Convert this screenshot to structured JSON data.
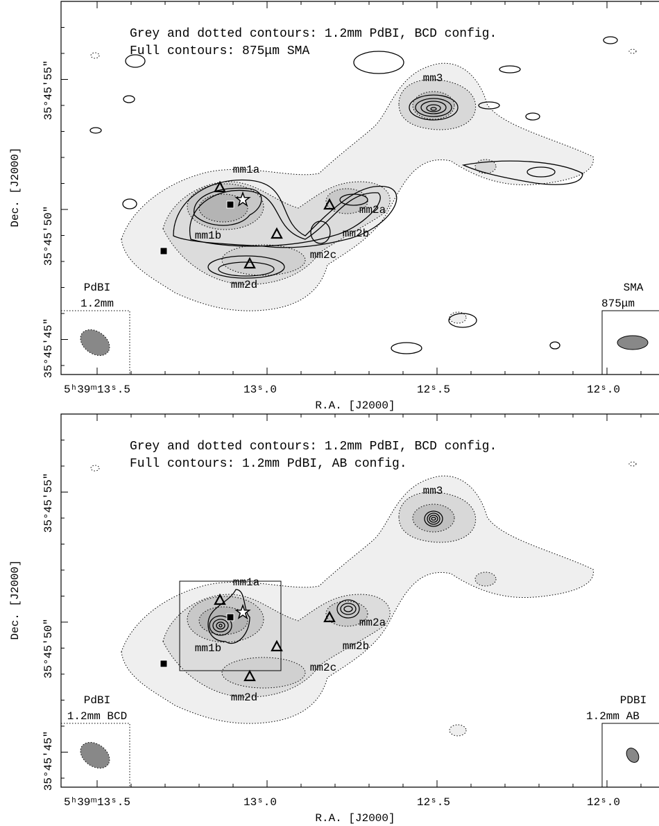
{
  "panels": [
    {
      "legend": [
        "Grey and dotted contours: 1.2mm PdBI, BCD config.",
        "Full contours: 875μm SMA"
      ],
      "sources": [
        "mm1a",
        "mm1b",
        "mm2a",
        "mm2b",
        "mm2c",
        "mm2d",
        "mm3"
      ],
      "beam_left": [
        "PdBI",
        "1.2mm"
      ],
      "beam_right": [
        "SMA",
        "875μm"
      ],
      "y_ticks": [
        "35°45'55\"",
        "35°45'50\"",
        "35°45'45\""
      ],
      "x_ticks": [
        "5ʰ39ᵐ13ˢ.5",
        "13ˢ.0",
        "12ˢ.5",
        "12ˢ.0"
      ],
      "x_label": "R.A. [J2000]",
      "y_label": "Dec. [J2000]"
    },
    {
      "legend": [
        "Grey and dotted contours: 1.2mm PdBI, BCD config.",
        "Full contours: 1.2mm PdBI, AB config."
      ],
      "sources": [
        "mm1a",
        "mm1b",
        "mm2a",
        "mm2b",
        "mm2c",
        "mm2d",
        "mm3"
      ],
      "beam_left": [
        "PdBI",
        "1.2mm BCD"
      ],
      "beam_right": [
        "PDBI",
        "1.2mm AB"
      ],
      "y_ticks": [
        "35°45'55\"",
        "35°45'50\"",
        "35°45'45\""
      ],
      "x_ticks": [
        "5ʰ39ᵐ13ˢ.5",
        "13ˢ.0",
        "12ˢ.5",
        "12ˢ.0"
      ],
      "x_label": "R.A. [J2000]",
      "y_label": "Dec. [J2000]"
    }
  ]
}
